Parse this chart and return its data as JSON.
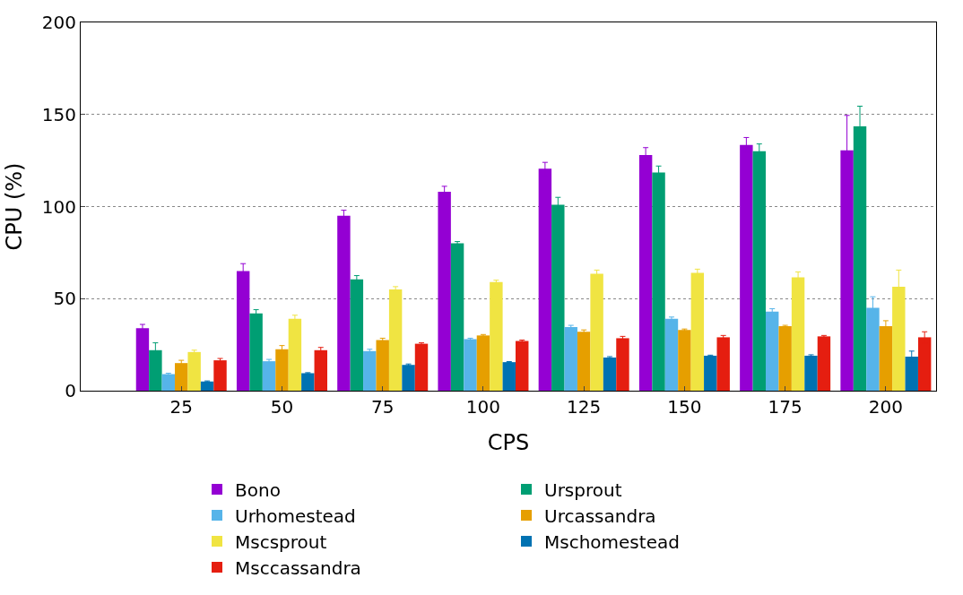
{
  "chart_data": {
    "type": "bar",
    "xlabel": "CPS",
    "ylabel": "CPU (%)",
    "categories": [
      "25",
      "50",
      "75",
      "100",
      "125",
      "150",
      "175",
      "200"
    ],
    "series": [
      {
        "name": "Bono",
        "color": "#9400d3",
        "values": [
          34,
          65,
          95,
          108,
          120.5,
          128,
          133.5,
          130.5
        ],
        "errors": [
          2,
          4,
          3,
          3,
          3.5,
          4,
          4,
          19
        ]
      },
      {
        "name": "Ursprout",
        "color": "#009e73",
        "values": [
          22,
          42,
          60.5,
          80,
          101,
          118.5,
          130,
          143.5
        ],
        "errors": [
          4,
          2,
          2,
          1,
          4,
          3.5,
          4,
          11
        ]
      },
      {
        "name": "Urhomestead",
        "color": "#56b4e9",
        "values": [
          9,
          16,
          21.5,
          28,
          34.5,
          39,
          43,
          45
        ],
        "errors": [
          0.5,
          1,
          1,
          0.5,
          1,
          1,
          1.5,
          6
        ]
      },
      {
        "name": "Urcassandra",
        "color": "#e69f00",
        "values": [
          15,
          22.5,
          27.5,
          30,
          32,
          33,
          35,
          35
        ],
        "errors": [
          1.5,
          2,
          1,
          0.5,
          1,
          0.5,
          0.5,
          3
        ]
      },
      {
        "name": "Mscsprout",
        "color": "#f0e442",
        "values": [
          21,
          39,
          55,
          59,
          63.5,
          64,
          61.5,
          56.5
        ],
        "errors": [
          1,
          2,
          1.5,
          1,
          2,
          2,
          3,
          9
        ]
      },
      {
        "name": "Mschomestead",
        "color": "#0072b2",
        "values": [
          5,
          9.5,
          14,
          15.5,
          18,
          19,
          19,
          18.5
        ],
        "errors": [
          0.3,
          0.3,
          0.5,
          0.3,
          0.5,
          0.3,
          0.5,
          3
        ]
      },
      {
        "name": "Msccassandra",
        "color": "#e51e10",
        "values": [
          16.5,
          22,
          25.5,
          27,
          28.5,
          29,
          29.5,
          29
        ],
        "errors": [
          1,
          1.5,
          0.5,
          0.5,
          1,
          1,
          0.5,
          3
        ]
      }
    ],
    "ylim": [
      0,
      200
    ],
    "yticks": [
      0,
      50,
      100,
      150,
      200
    ],
    "grid": "y",
    "legend": "bottom"
  }
}
